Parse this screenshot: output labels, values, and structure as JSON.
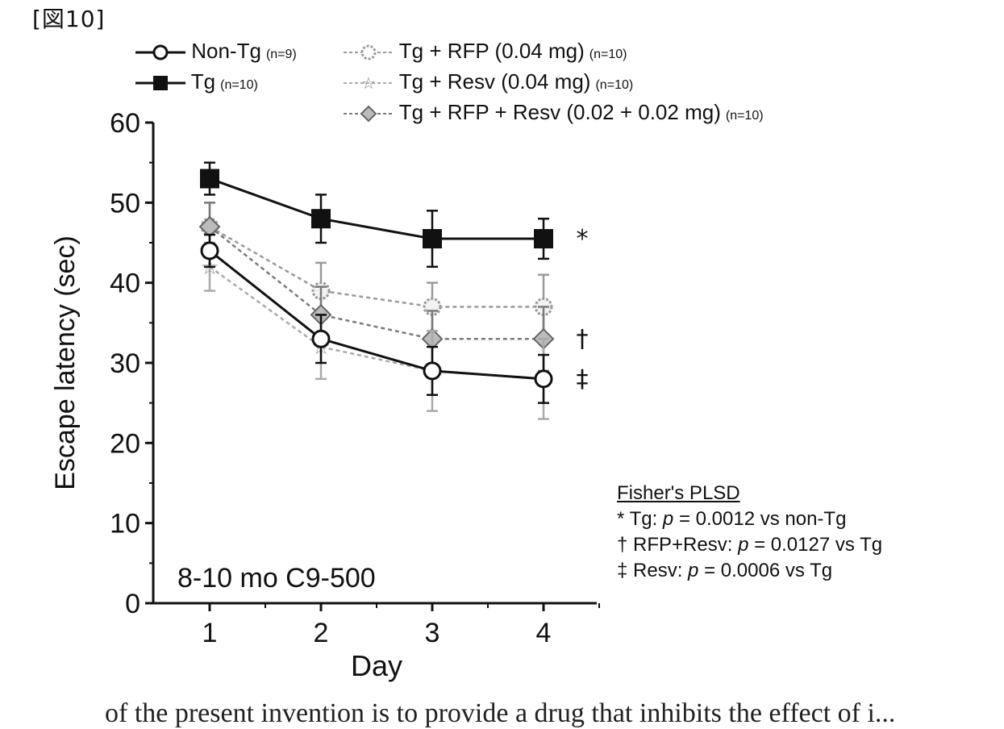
{
  "figure_label": "[図10]",
  "chart_data": {
    "type": "line",
    "title": "",
    "annotation": "8-10 mo C9-500",
    "xlabel": "Day",
    "ylabel": "Escape latency (sec)",
    "x": [
      1,
      2,
      3,
      4
    ],
    "x_ticks": [
      "1",
      "2",
      "3",
      "4"
    ],
    "y_ticks": [
      "0",
      "10",
      "20",
      "30",
      "40",
      "50",
      "60"
    ],
    "ylim": [
      0,
      60
    ],
    "grid": false,
    "legend_position": "top",
    "series": [
      {
        "name": "Non-Tg",
        "n": "(n=9)",
        "marker": "open-circle",
        "line": "solid",
        "color": "#111111",
        "values": [
          44,
          33,
          29,
          28
        ],
        "errors": [
          2,
          3,
          3,
          3
        ],
        "sig": ""
      },
      {
        "name": "Tg",
        "n": "(n=10)",
        "marker": "filled-square",
        "line": "solid",
        "color": "#111111",
        "values": [
          53,
          48,
          45.5,
          45.5
        ],
        "errors": [
          2,
          3,
          3.5,
          2.5
        ],
        "sig": "*"
      },
      {
        "name": "Tg + RFP (0.04 mg)",
        "n": "(n=10)",
        "marker": "open-circle-gray",
        "line": "dashed",
        "color": "#9a9a9a",
        "values": [
          47,
          39,
          37,
          37
        ],
        "errors": [
          3,
          3.5,
          3,
          4
        ],
        "sig": ""
      },
      {
        "name": "Tg + Resv (0.04 mg)",
        "n": "(n=10)",
        "marker": "star",
        "line": "dashed",
        "color": "#aaaaaa",
        "values": [
          42,
          32,
          29,
          28
        ],
        "errors": [
          3,
          4,
          5,
          5
        ],
        "sig": "‡"
      },
      {
        "name": "Tg + RFP + Resv (0.02 + 0.02 mg)",
        "n": "(n=10)",
        "marker": "diamond",
        "line": "dashed",
        "color": "#7a7a7a",
        "values": [
          47,
          36,
          33,
          33
        ],
        "errors": [
          3,
          3.5,
          3.5,
          4
        ],
        "sig": "†"
      }
    ]
  },
  "stats": {
    "heading": "Fisher's PLSD",
    "lines": [
      {
        "sym": "*",
        "pre": "Tg: ",
        "p": "p",
        "post": " = 0.0012 vs non-Tg"
      },
      {
        "sym": "†",
        "pre": "RFP+Resv: ",
        "p": "p",
        "post": " = 0.0127 vs Tg"
      },
      {
        "sym": "‡",
        "pre": "Resv: ",
        "p": "p",
        "post": " = 0.0006 vs Tg"
      }
    ]
  },
  "footer_text": "of the present invention is to provide a drug that inhibits the effect of i..."
}
